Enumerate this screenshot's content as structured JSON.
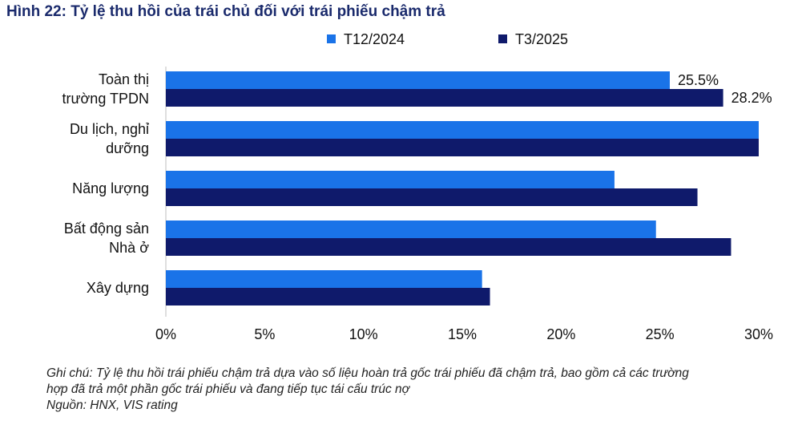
{
  "chart_data": {
    "type": "bar",
    "orientation": "horizontal",
    "title": "Hình 22: Tỷ lệ thu hồi của trái chủ đối với trái phiếu chậm trả",
    "categories": [
      [
        "Toàn thị",
        "trường TPDN"
      ],
      [
        "Du lịch, nghỉ",
        "dưỡng"
      ],
      [
        "Năng lượng"
      ],
      [
        "Bất động sản",
        "Nhà ở"
      ],
      [
        "Xây dựng"
      ]
    ],
    "series": [
      {
        "name": "T12/2024",
        "color": "#1a73e8",
        "values": [
          25.5,
          30.0,
          22.7,
          24.8,
          16.0
        ]
      },
      {
        "name": "T3/2025",
        "color": "#0f1a6b",
        "values": [
          28.2,
          30.0,
          26.9,
          28.6,
          16.4
        ]
      }
    ],
    "data_labels": [
      {
        "series": 0,
        "index": 0,
        "text": "25.5%"
      },
      {
        "series": 1,
        "index": 0,
        "text": "28.2%"
      }
    ],
    "xlim": [
      0,
      30
    ],
    "xticks": [
      0,
      5,
      10,
      15,
      20,
      25,
      30
    ],
    "xtick_labels": [
      "0%",
      "5%",
      "10%",
      "15%",
      "20%",
      "25%",
      "30%"
    ],
    "xlabel": "",
    "ylabel": "",
    "legend_position": "top",
    "grid": false
  },
  "notes": [
    "Ghi chú: Tỷ lệ thu hồi trái phiếu chậm trả dựa vào số liệu hoàn trả gốc trái phiếu đã chậm trả, bao gồm cả các trường",
    "hợp đã trả một phần gốc trái phiếu và đang tiếp tục tái cấu trúc nợ",
    "Nguồn: HNX, VIS rating"
  ]
}
